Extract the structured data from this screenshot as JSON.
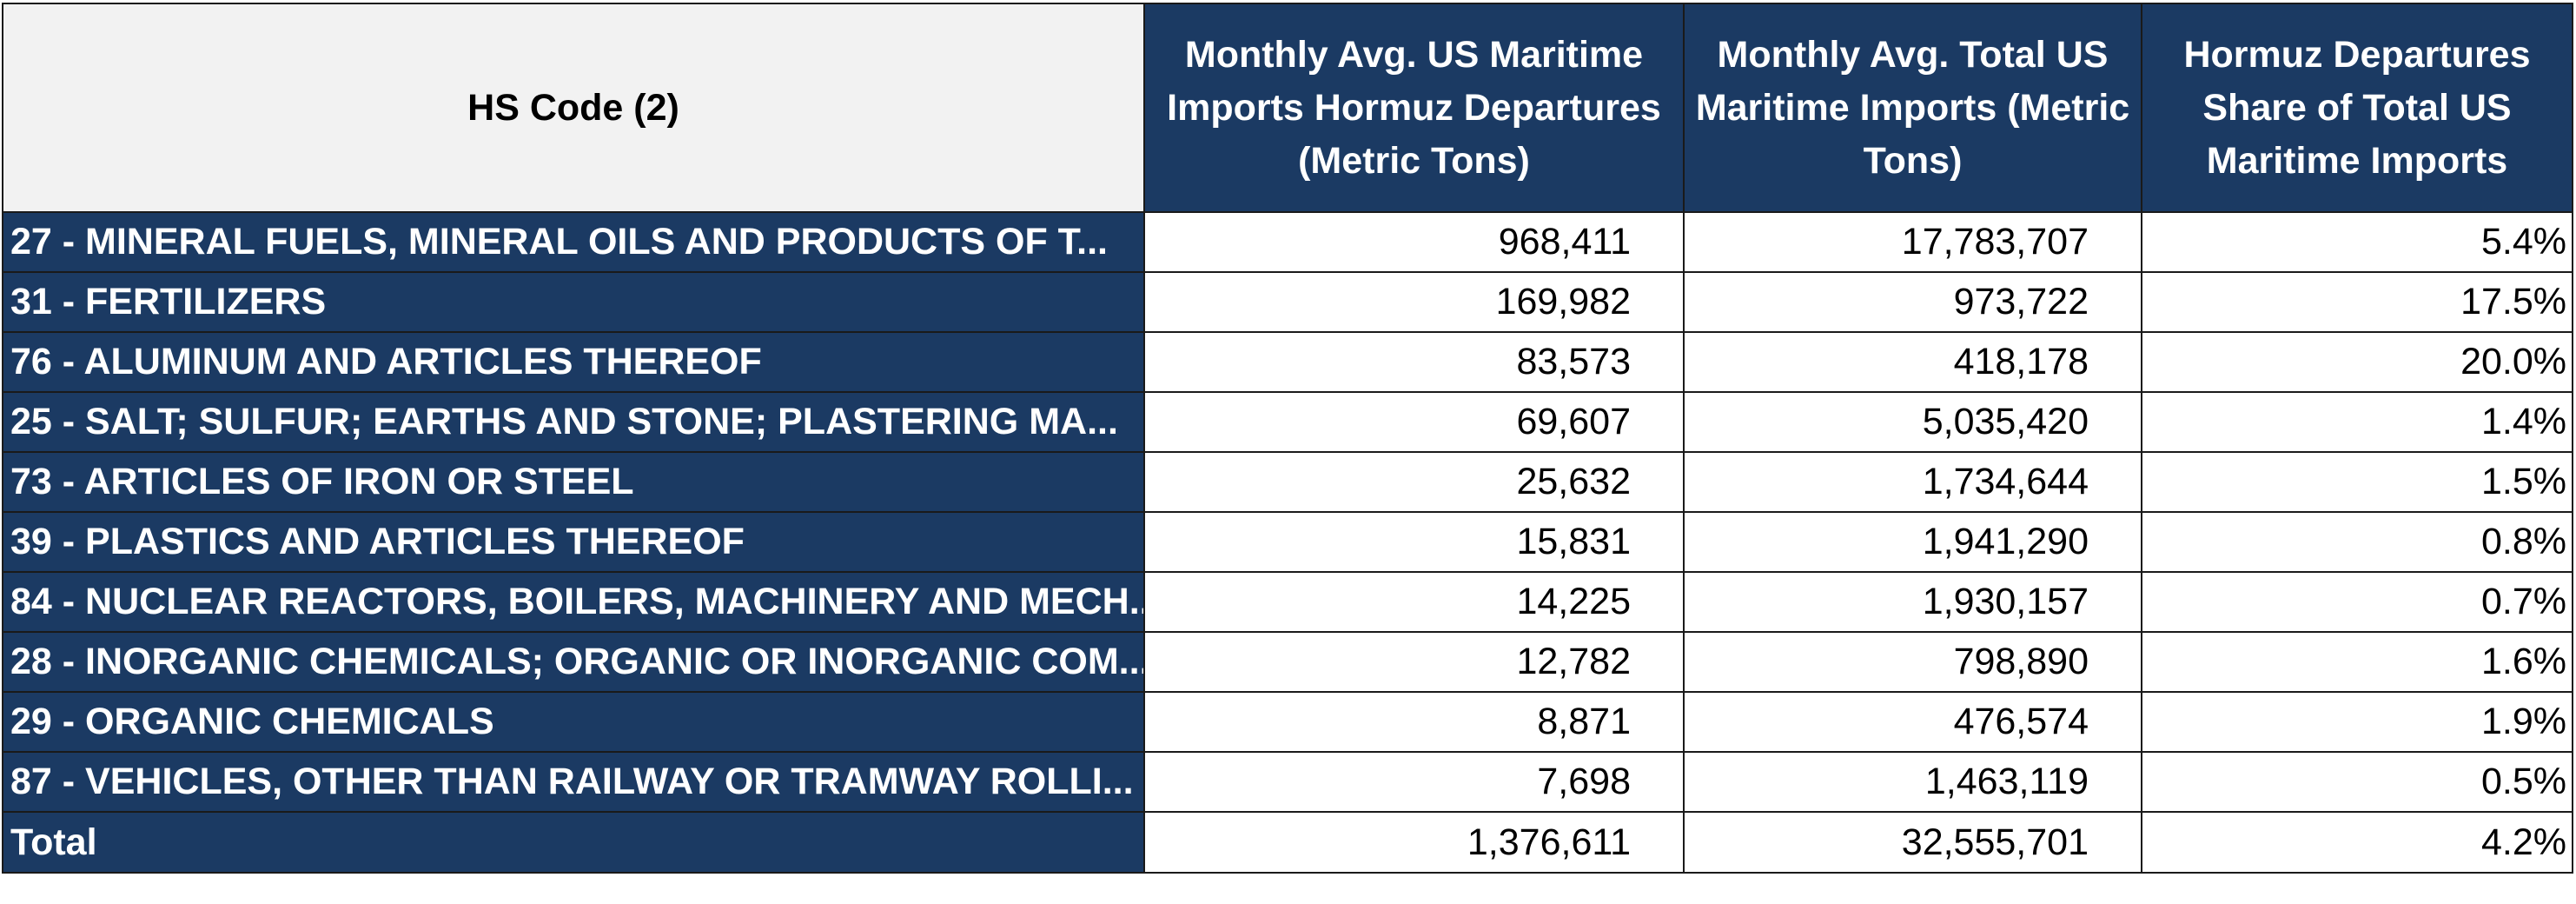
{
  "chart_data": {
    "type": "table",
    "columns": [
      "HS Code (2)",
      "Monthly Avg. US Maritime Imports Hormuz Departures (Metric Tons)",
      "Monthly Avg. Total US Maritime Imports (Metric Tons)",
      "Hormuz Departures Share of Total US Maritime Imports"
    ],
    "rows": [
      [
        "27 - MINERAL FUELS, MINERAL OILS AND PRODUCTS OF T...",
        "968,411",
        "17,783,707",
        "5.4%"
      ],
      [
        "31 - FERTILIZERS",
        "169,982",
        "973,722",
        "17.5%"
      ],
      [
        "76 - ALUMINUM AND ARTICLES THEREOF",
        "83,573",
        "418,178",
        "20.0%"
      ],
      [
        "25 - SALT; SULFUR; EARTHS AND STONE; PLASTERING MA...",
        "69,607",
        "5,035,420",
        "1.4%"
      ],
      [
        "73 - ARTICLES OF IRON OR STEEL",
        "25,632",
        "1,734,644",
        "1.5%"
      ],
      [
        "39 - PLASTICS AND ARTICLES THEREOF",
        "15,831",
        "1,941,290",
        "0.8%"
      ],
      [
        "84 - NUCLEAR REACTORS, BOILERS, MACHINERY AND MECH...",
        "14,225",
        "1,930,157",
        "0.7%"
      ],
      [
        "28 - INORGANIC CHEMICALS; ORGANIC OR INORGANIC COM...",
        "12,782",
        "798,890",
        "1.6%"
      ],
      [
        "29 - ORGANIC CHEMICALS",
        "8,871",
        "476,574",
        "1.9%"
      ],
      [
        "87 - VEHICLES, OTHER THAN RAILWAY OR TRAMWAY ROLLI...",
        "7,698",
        "1,463,119",
        "0.5%"
      ],
      [
        "Total",
        "1,376,611",
        "32,555,701",
        "4.2%"
      ]
    ]
  },
  "colors": {
    "header_navy": "#1b3a63",
    "header_gray": "#f2f2f2",
    "border": "#1a1a1a",
    "text_on_navy": "#ffffff"
  }
}
